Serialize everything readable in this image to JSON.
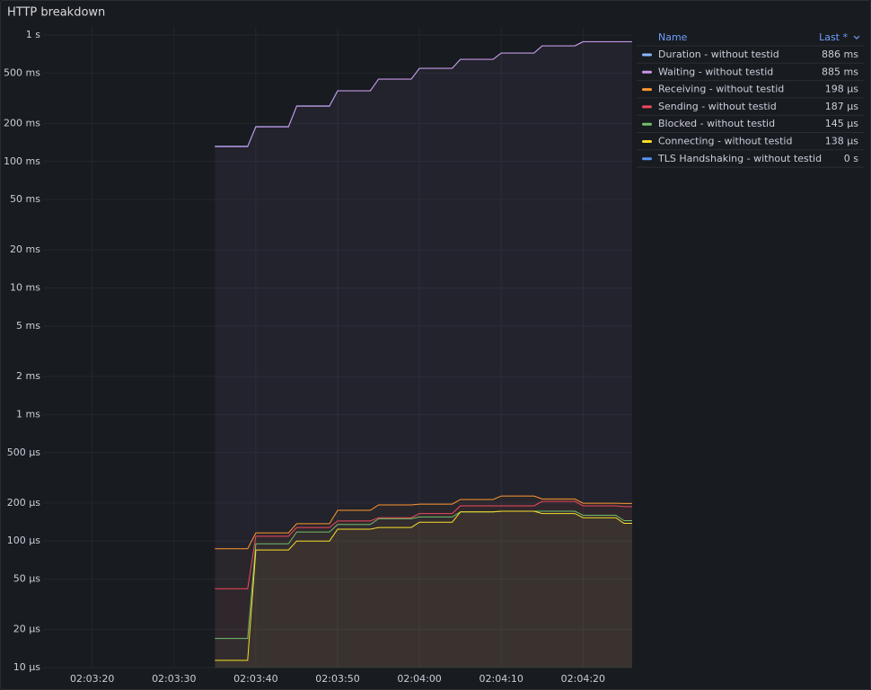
{
  "chart_data": {
    "type": "line",
    "title": "HTTP breakdown",
    "log_scale": true,
    "grid": true,
    "legend_position": "right",
    "legend": {
      "name_header": "Name",
      "last_header": "Last *"
    },
    "x": [
      "02:03:35",
      "02:03:39",
      "02:03:40",
      "02:03:44",
      "02:03:45",
      "02:03:49",
      "02:03:50",
      "02:03:54",
      "02:03:55",
      "02:03:59",
      "02:04:00",
      "02:04:04",
      "02:04:05",
      "02:04:09",
      "02:04:10",
      "02:04:14",
      "02:04:15",
      "02:04:19",
      "02:04:20",
      "02:04:24",
      "02:04:25",
      "02:04:26"
    ],
    "xlim": [
      "02:03:14",
      "02:04:26"
    ],
    "xticks": [
      "02:03:20",
      "02:03:30",
      "02:03:40",
      "02:03:50",
      "02:04:00",
      "02:04:10",
      "02:04:20"
    ],
    "ylim": [
      1e-05,
      1
    ],
    "yticks": [
      {
        "value": 1,
        "label": "1 s"
      },
      {
        "value": 0.5,
        "label": "500 ms"
      },
      {
        "value": 0.2,
        "label": "200 ms"
      },
      {
        "value": 0.1,
        "label": "100 ms"
      },
      {
        "value": 0.05,
        "label": "50 ms"
      },
      {
        "value": 0.02,
        "label": "20 ms"
      },
      {
        "value": 0.01,
        "label": "10 ms"
      },
      {
        "value": 0.005,
        "label": "5 ms"
      },
      {
        "value": 0.002,
        "label": "2 ms"
      },
      {
        "value": 0.001,
        "label": "1 ms"
      },
      {
        "value": 0.0005,
        "label": "500 µs"
      },
      {
        "value": 0.0002,
        "label": "200 µs"
      },
      {
        "value": 0.0001,
        "label": "100 µs"
      },
      {
        "value": 5e-05,
        "label": "50 µs"
      },
      {
        "value": 2e-05,
        "label": "20 µs"
      },
      {
        "value": 1e-05,
        "label": "10 µs"
      }
    ],
    "series": [
      {
        "name": "Duration - without testid",
        "color": "#8ab8ff",
        "last_label": "886 ms",
        "values": [
          0.132,
          0.132,
          0.189,
          0.189,
          0.275,
          0.275,
          0.363,
          0.363,
          0.449,
          0.449,
          0.546,
          0.546,
          0.643,
          0.643,
          0.721,
          0.721,
          0.822,
          0.822,
          0.886,
          0.886,
          0.886,
          0.886
        ]
      },
      {
        "name": "Waiting - without testid",
        "color": "#ca95e5",
        "last_label": "885 ms",
        "values": [
          0.131,
          0.131,
          0.188,
          0.188,
          0.274,
          0.274,
          0.362,
          0.362,
          0.448,
          0.448,
          0.545,
          0.545,
          0.642,
          0.642,
          0.72,
          0.72,
          0.821,
          0.821,
          0.885,
          0.885,
          0.885,
          0.885
        ]
      },
      {
        "name": "Receiving - without testid",
        "color": "#ff9830",
        "last_label": "198 µs",
        "values": [
          8.7e-05,
          8.7e-05,
          0.000116,
          0.000116,
          0.000137,
          0.000137,
          0.000175,
          0.000175,
          0.000193,
          0.000193,
          0.000196,
          0.000196,
          0.000213,
          0.000213,
          0.000227,
          0.000227,
          0.000215,
          0.000215,
          0.000199,
          0.000199,
          0.000198,
          0.000198
        ]
      },
      {
        "name": "Sending - without testid",
        "color": "#f2495c",
        "last_label": "187 µs",
        "values": [
          4.2e-05,
          4.2e-05,
          0.000109,
          0.000109,
          0.000128,
          0.000128,
          0.000144,
          0.000144,
          0.000153,
          0.000153,
          0.000165,
          0.000165,
          0.00019,
          0.00019,
          0.00019,
          0.00019,
          0.000206,
          0.000206,
          0.00019,
          0.00019,
          0.000187,
          0.000187
        ]
      },
      {
        "name": "Blocked - without testid",
        "color": "#73bf69",
        "last_label": "145 µs",
        "values": [
          1.7e-05,
          1.7e-05,
          9.5e-05,
          9.5e-05,
          0.000118,
          0.000118,
          0.000135,
          0.000135,
          0.00015,
          0.00015,
          0.000155,
          0.000155,
          0.00017,
          0.00017,
          0.000172,
          0.000172,
          0.000172,
          0.000172,
          0.00016,
          0.00016,
          0.000145,
          0.000145
        ]
      },
      {
        "name": "Connecting - without testid",
        "color": "#fade2a",
        "last_label": "138 µs",
        "values": [
          1.14e-05,
          1.14e-05,
          8.5e-05,
          8.5e-05,
          0.0001,
          0.0001,
          0.000124,
          0.000124,
          0.000128,
          0.000128,
          0.000141,
          0.000141,
          0.00017,
          0.00017,
          0.000172,
          0.000172,
          0.000165,
          0.000165,
          0.000153,
          0.000153,
          0.000138,
          0.000138
        ]
      },
      {
        "name": "TLS Handshaking - without testid",
        "color": "#5794f2",
        "last_label": "0 s",
        "values": [
          0,
          0,
          0,
          0,
          0,
          0,
          0,
          0,
          0,
          0,
          0,
          0,
          0,
          0,
          0,
          0,
          0,
          0,
          0,
          0,
          0,
          0
        ]
      }
    ]
  }
}
